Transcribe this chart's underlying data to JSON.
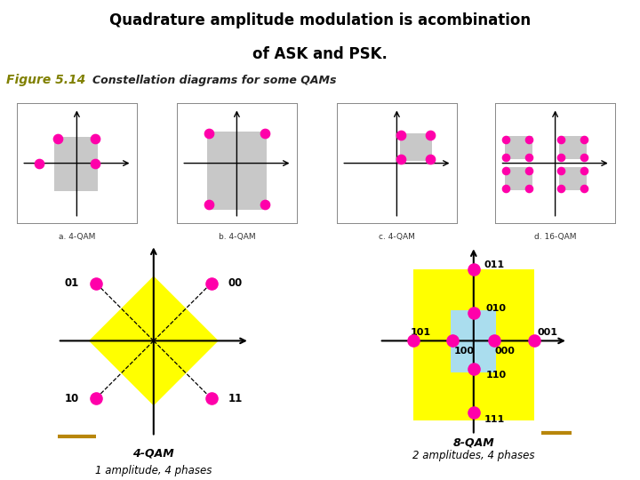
{
  "title_line1": "Quadrature amplitude modulation is acombination",
  "title_line2": "of ASK and PSK.",
  "title_bg": "#99ff00",
  "title_color": "#000000",
  "fig_label": "Figure 5.14",
  "fig_label_color": "#808000",
  "fig_subtitle": "Constellation diagrams for some QAMs",
  "dot_color": "#ff00aa",
  "gray_rect_color": "#c8c8c8",
  "yellow_color": "#ffff00",
  "cyan_color": "#aaddee",
  "gold_line_color": "#b8860b",
  "subplots_labels": [
    "a. 4-QAM",
    "b. 4-QAM",
    "c. 4-QAM",
    "d. 16-QAM"
  ],
  "bottom_left_label": "4-QAM",
  "bottom_left_sub": "1 amplitude, 4 phases",
  "bottom_right_label": "8-QAM",
  "bottom_right_sub": "2 amplitudes, 4 phases"
}
